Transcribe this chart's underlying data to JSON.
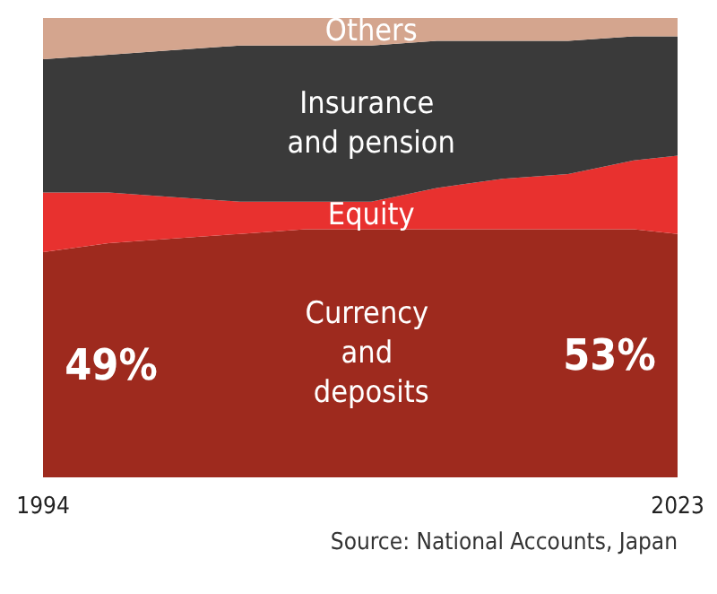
{
  "chart_data": {
    "type": "area",
    "stacked": true,
    "x": [
      1994,
      1997,
      2000,
      2003,
      2006,
      2009,
      2012,
      2015,
      2018,
      2021,
      2023
    ],
    "xlim": [
      1994,
      2023
    ],
    "xticks": [
      1994,
      2023
    ],
    "tick_labels": "x",
    "series": [
      {
        "name": "Currency and deposits",
        "color": "#9e2a1e",
        "values": [
          49,
          51,
          52,
          53,
          54,
          54,
          54,
          54,
          54,
          54,
          53
        ],
        "value_labels": [
          "49%",
          null,
          null,
          null,
          null,
          null,
          null,
          null,
          null,
          null,
          "53%"
        ]
      },
      {
        "name": "Equity",
        "color": "#e8312f",
        "values": [
          13,
          11,
          9,
          7,
          6,
          6,
          9,
          11,
          12,
          15,
          17
        ]
      },
      {
        "name": "Insurance and pension",
        "color": "#3a3a3a",
        "values": [
          29,
          30,
          32,
          34,
          34,
          34,
          32,
          30,
          29,
          27,
          26
        ]
      },
      {
        "name": "Others",
        "color": "#d4a58e",
        "values": [
          9,
          8,
          7,
          6,
          6,
          6,
          5,
          5,
          5,
          4,
          4
        ]
      }
    ],
    "annotations": [
      "Source: National Accounts, Japan"
    ]
  }
}
